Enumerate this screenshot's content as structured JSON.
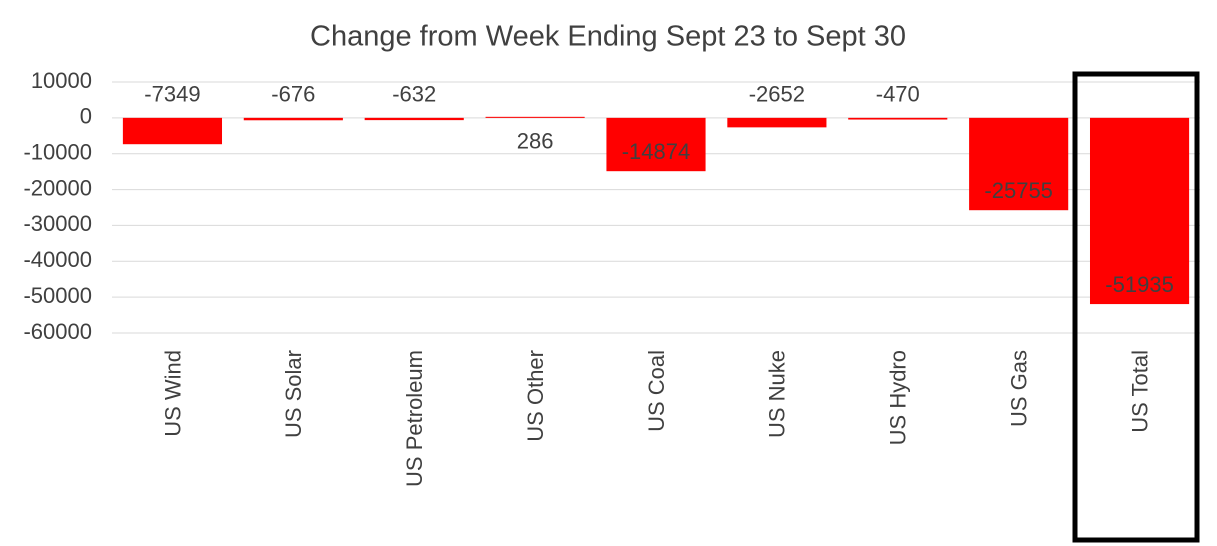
{
  "chart_data": {
    "type": "bar",
    "title": "Change from Week Ending Sept 23 to Sept 30",
    "categories": [
      "US Wind",
      "US Solar",
      "US Petroleum",
      "US Other",
      "US Coal",
      "US Nuke",
      "US Hydro",
      "US Gas",
      "US Total"
    ],
    "values": [
      -7349,
      -676,
      -632,
      286,
      -14874,
      -2652,
      -470,
      -25755,
      -51935
    ],
    "color": "#ff0000",
    "ylim": [
      -60000,
      10000
    ],
    "yticks": [
      -60000,
      -50000,
      -40000,
      -30000,
      -20000,
      -10000,
      0,
      10000
    ],
    "grid": true
  }
}
